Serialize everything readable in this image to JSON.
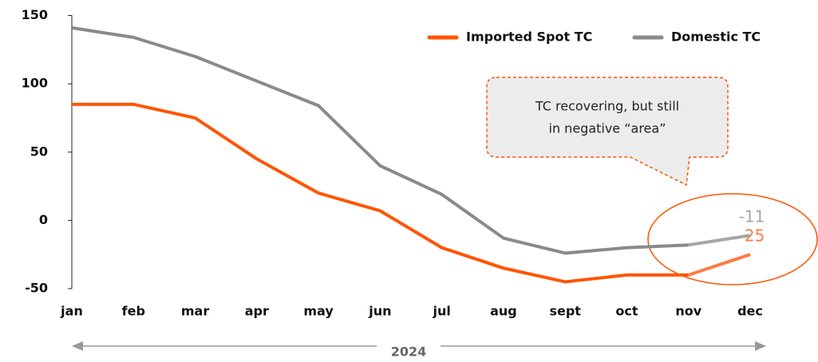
{
  "chart_data": {
    "type": "line",
    "categories": [
      "jan",
      "feb",
      "mar",
      "apr",
      "may",
      "jun",
      "jul",
      "aug",
      "sept",
      "oct",
      "nov",
      "dec"
    ],
    "series": [
      {
        "name": "Imported Spot TC",
        "color": "#ff5500",
        "highlight_color": "#ff7a45",
        "values": [
          85,
          85,
          75,
          45,
          20,
          7,
          -20,
          -35,
          -45,
          -40,
          -40,
          -25
        ]
      },
      {
        "name": "Domestic TC",
        "color": "#8a8a8a",
        "highlight_color": "#a6a6a6",
        "values": [
          141,
          134,
          120,
          102,
          84,
          40,
          19,
          -13,
          -24,
          -20,
          -18,
          -11
        ]
      }
    ],
    "ylim": [
      -50,
      150
    ],
    "yticks": [
      -50,
      0,
      50,
      100,
      150
    ],
    "grid": false,
    "annotation": [
      "TC recovering, but still",
      "in negative “area”"
    ],
    "xlabel": "2024"
  }
}
